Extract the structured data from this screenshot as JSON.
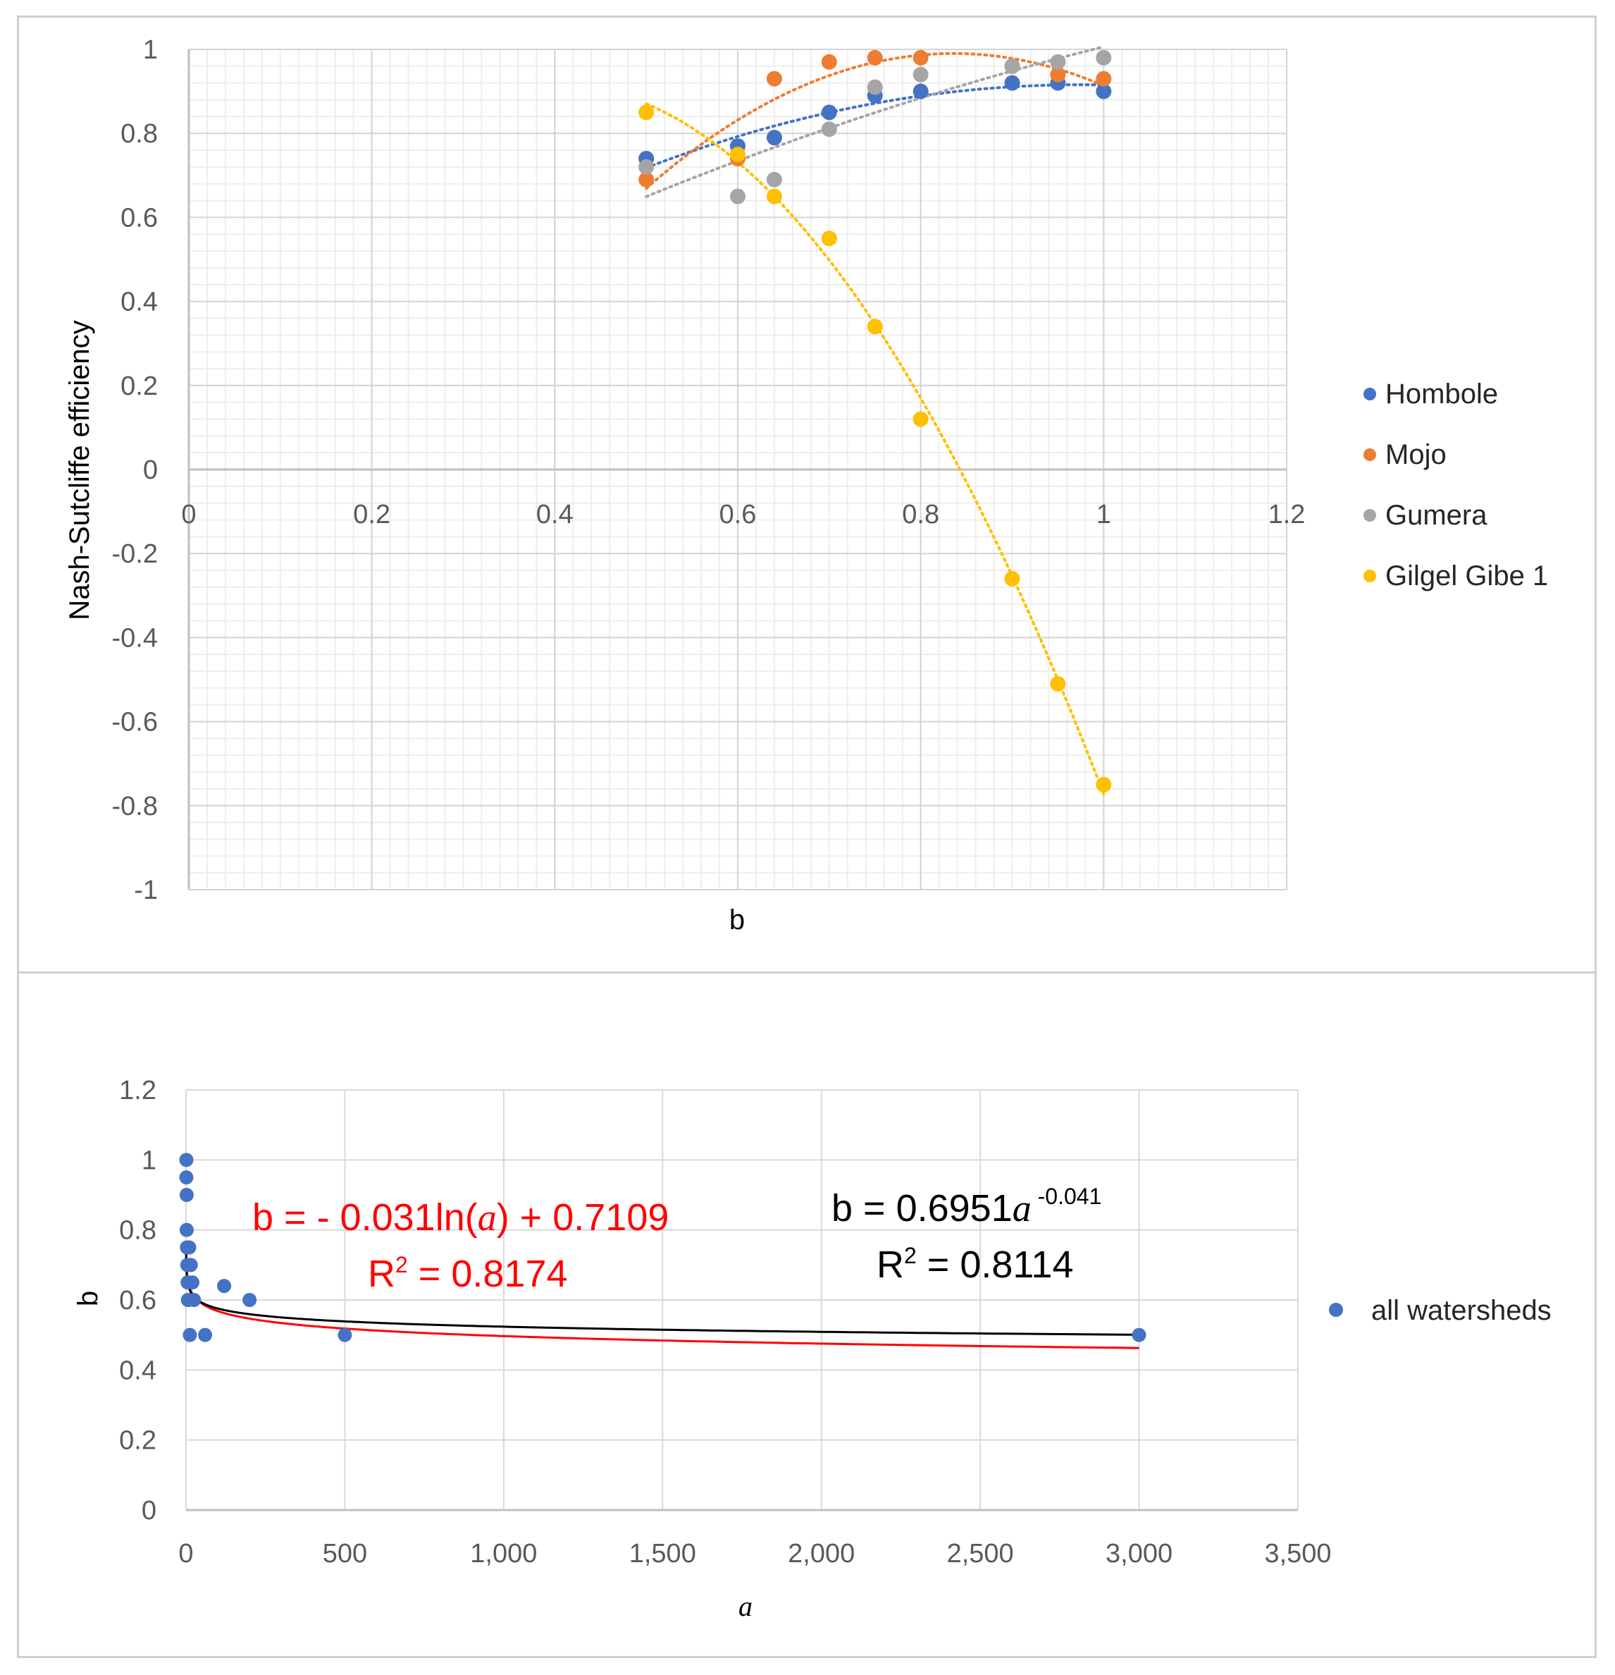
{
  "chart_data": [
    {
      "type": "scatter",
      "xlabel": "b",
      "ylabel": "Nash-Sutcliffe efficiency",
      "xlim": [
        0,
        1.2
      ],
      "ylim": [
        -1,
        1
      ],
      "x_ticks": [
        "0",
        "0.2",
        "0.4",
        "0.6",
        "0.8",
        "1",
        "1.2"
      ],
      "y_ticks": [
        "1",
        "0.8",
        "0.6",
        "0.4",
        "0.2",
        "0",
        "-0.2",
        "-0.4",
        "-0.6",
        "-0.8",
        "-1"
      ],
      "grid": true,
      "legend_position": "right",
      "series": [
        {
          "name": "Hombole",
          "color": "#4472C4",
          "trendline": "dotted",
          "x": [
            0.5,
            0.6,
            0.64,
            0.7,
            0.75,
            0.8,
            0.9,
            0.95,
            1.0
          ],
          "y": [
            0.74,
            0.77,
            0.79,
            0.85,
            0.89,
            0.9,
            0.92,
            0.92,
            0.9
          ]
        },
        {
          "name": "Mojo",
          "color": "#ED7D31",
          "trendline": "dotted",
          "x": [
            0.5,
            0.6,
            0.64,
            0.7,
            0.75,
            0.8,
            0.9,
            0.95,
            1.0
          ],
          "y": [
            0.69,
            0.74,
            0.93,
            0.97,
            0.98,
            0.98,
            0.96,
            0.94,
            0.93
          ]
        },
        {
          "name": "Gumera",
          "color": "#A5A5A5",
          "trendline": "dotted",
          "x": [
            0.5,
            0.6,
            0.64,
            0.7,
            0.75,
            0.8,
            0.9,
            0.95,
            1.0
          ],
          "y": [
            0.72,
            0.65,
            0.69,
            0.81,
            0.91,
            0.94,
            0.96,
            0.97,
            0.98
          ]
        },
        {
          "name": "Gilgel Gibe 1",
          "color": "#FFC000",
          "trendline": "dotted",
          "x": [
            0.5,
            0.6,
            0.64,
            0.7,
            0.75,
            0.8,
            0.9,
            0.95,
            1.0
          ],
          "y": [
            0.85,
            0.75,
            0.65,
            0.55,
            0.34,
            0.12,
            -0.26,
            -0.51,
            -0.75
          ]
        }
      ]
    },
    {
      "type": "scatter",
      "xlabel": "a",
      "ylabel": "b",
      "xlim": [
        0,
        3500
      ],
      "ylim": [
        0,
        1.2
      ],
      "x_ticks": [
        "0",
        "500",
        "1,000",
        "1,500",
        "2,000",
        "2,500",
        "3,000",
        "3,500"
      ],
      "y_ticks": [
        "1.2",
        "1",
        "0.8",
        "0.6",
        "0.4",
        "0.2",
        "0"
      ],
      "grid": true,
      "legend_position": "right",
      "series": [
        {
          "name": "all watersheds",
          "color": "#4472C4",
          "x": [
            1,
            1,
            2,
            2,
            3,
            4,
            5,
            6,
            8,
            10,
            12,
            15,
            20,
            25,
            60,
            120,
            200,
            500,
            3000
          ],
          "y": [
            1.0,
            0.95,
            0.9,
            0.8,
            0.75,
            0.7,
            0.65,
            0.6,
            0.6,
            0.75,
            0.5,
            0.7,
            0.65,
            0.6,
            0.5,
            0.64,
            0.6,
            0.5,
            0.5
          ]
        }
      ],
      "fits": [
        {
          "kind": "log",
          "color": "#FF0000",
          "coef": -0.031,
          "intercept": 0.7109
        },
        {
          "kind": "power",
          "color": "#000000",
          "coef": 0.6951,
          "exponent": -0.041
        }
      ],
      "annotations": {
        "log_eq_prefix": "b = - 0.031ln(",
        "log_eq_var": "a",
        "log_eq_suffix": ") + 0.7109",
        "log_r2_prefix": "R",
        "log_r2_sup": "2",
        "log_r2_suffix": " = 0.8174",
        "pow_eq_prefix": "b = 0.6951",
        "pow_eq_var": "a",
        "pow_eq_exp": " -0.041",
        "pow_r2_prefix": "R",
        "pow_r2_sup": "2",
        "pow_r2_suffix": " = 0.8114"
      }
    }
  ]
}
